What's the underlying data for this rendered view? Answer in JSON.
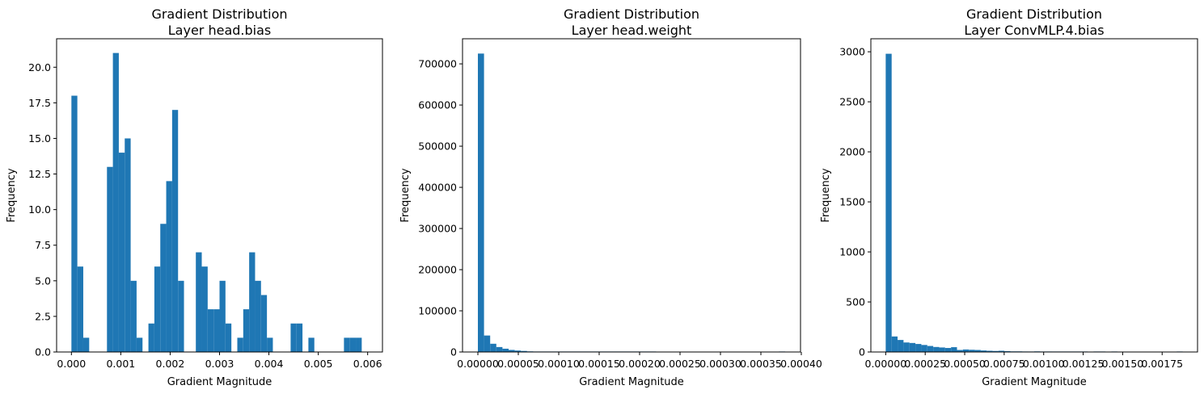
{
  "colors": {
    "bar": "#1f77b4",
    "axis": "#000000",
    "background": "#ffffff"
  },
  "chart_data": [
    {
      "type": "bar",
      "title": "Gradient Distribution",
      "subtitle": "Layer head.bias",
      "xlabel": "Gradient Magnitude",
      "ylabel": "Frequency",
      "xlim": [
        -0.0003,
        0.0063
      ],
      "ylim": [
        0,
        22
      ],
      "xticks": [
        0.0,
        0.001,
        0.002,
        0.003,
        0.004,
        0.005,
        0.006
      ],
      "xtick_labels": [
        "0.000",
        "0.001",
        "0.002",
        "0.003",
        "0.004",
        "0.005",
        "0.006"
      ],
      "yticks": [
        0,
        2.5,
        5,
        7.5,
        10,
        12.5,
        15,
        17.5,
        20
      ],
      "ytick_labels": [
        "0.0",
        "2.5",
        "5.0",
        "7.5",
        "10.0",
        "12.5",
        "15.0",
        "17.5",
        "20.0"
      ],
      "bin_start": 0.0,
      "bin_width": 0.00012,
      "counts": [
        18,
        6,
        1,
        0,
        0,
        0,
        13,
        21,
        14,
        15,
        5,
        1,
        0,
        2,
        6,
        9,
        12,
        17,
        5,
        0,
        0,
        7,
        6,
        3,
        3,
        5,
        2,
        0,
        1,
        3,
        7,
        5,
        4,
        1,
        0,
        0,
        0,
        2,
        2,
        0,
        1,
        0,
        0,
        0,
        0,
        0,
        1,
        1,
        1,
        0
      ]
    },
    {
      "type": "bar",
      "title": "Gradient Distribution",
      "subtitle": "Layer head.weight",
      "xlabel": "Gradient Magnitude",
      "ylabel": "Frequency",
      "xlim": [
        -1.9e-05,
        0.000399
      ],
      "ylim": [
        0,
        761000
      ],
      "xticks": [
        0.0,
        5e-05,
        0.0001,
        0.00015,
        0.0002,
        0.00025,
        0.0003,
        0.00035,
        0.0004
      ],
      "xtick_labels": [
        "0.00000",
        "0.00005",
        "0.00010",
        "0.00015",
        "0.00020",
        "0.00025",
        "0.00030",
        "0.00035",
        "0.00040"
      ],
      "yticks": [
        0,
        100000,
        200000,
        300000,
        400000,
        500000,
        600000,
        700000
      ],
      "ytick_labels": [
        "0",
        "100000",
        "200000",
        "300000",
        "400000",
        "500000",
        "600000",
        "700000"
      ],
      "bin_start": 0.0,
      "bin_width": 7.6e-06,
      "counts": [
        725000,
        40000,
        20000,
        12000,
        8000,
        5000,
        3500,
        2500,
        1500,
        1000,
        700,
        500,
        300,
        200,
        100,
        80,
        60,
        40,
        30,
        20,
        10,
        8,
        5,
        3,
        2,
        1,
        1,
        1,
        1,
        0,
        0,
        0,
        0,
        0,
        0,
        0,
        0,
        0,
        0,
        0,
        0,
        0,
        0,
        0,
        0,
        0,
        0,
        0,
        0,
        1
      ]
    },
    {
      "type": "bar",
      "title": "Gradient Distribution",
      "subtitle": "Layer ConvMLP.4.bias",
      "xlabel": "Gradient Magnitude",
      "ylabel": "Frequency",
      "xlim": [
        -9.4e-05,
        0.001974
      ],
      "ylim": [
        0,
        3130
      ],
      "xticks": [
        0.0,
        0.00025,
        0.0005,
        0.00075,
        0.001,
        0.00125,
        0.0015,
        0.00175
      ],
      "xtick_labels": [
        "0.00000",
        "0.00025",
        "0.00050",
        "0.00075",
        "0.00100",
        "0.00125",
        "0.00150",
        "0.00175"
      ],
      "yticks": [
        0,
        500,
        1000,
        1500,
        2000,
        2500,
        3000
      ],
      "ytick_labels": [
        "0",
        "500",
        "1000",
        "1500",
        "2000",
        "2500",
        "3000"
      ],
      "bin_start": 0.0,
      "bin_width": 3.76e-05,
      "counts": [
        2980,
        155,
        120,
        95,
        90,
        80,
        70,
        60,
        50,
        45,
        40,
        48,
        20,
        25,
        22,
        20,
        15,
        12,
        10,
        12,
        8,
        6,
        6,
        5,
        4,
        6,
        3,
        5,
        3,
        2,
        1,
        2,
        3,
        1,
        0,
        1,
        2,
        0,
        1,
        0,
        0,
        0,
        0,
        0,
        0,
        0,
        0,
        0,
        0,
        1
      ]
    }
  ]
}
